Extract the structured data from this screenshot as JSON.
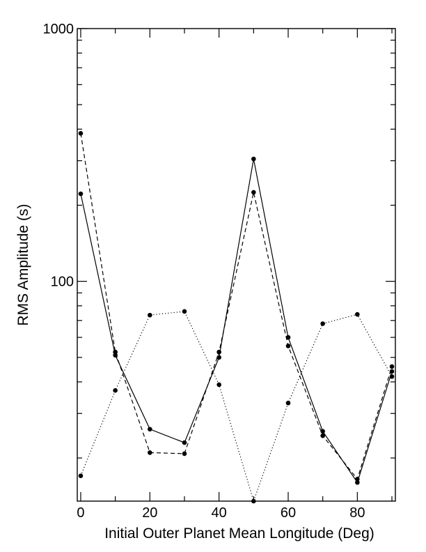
{
  "chart_data": {
    "type": "line",
    "title": "",
    "xlabel": "Initial Outer Planet Mean Longitude (Deg)",
    "ylabel": "RMS Amplitude (s)",
    "xlim": [
      -1,
      91
    ],
    "ylim": [
      13.5,
      1000
    ],
    "yscale": "log",
    "grid": false,
    "x_ticks": [
      0,
      20,
      40,
      60,
      80
    ],
    "x_minor_ticks": [
      10,
      30,
      50,
      70,
      90
    ],
    "y_ticks": [
      100,
      1000
    ],
    "x": [
      0,
      10,
      20,
      30,
      40,
      50,
      60,
      70,
      80,
      90
    ],
    "series": [
      {
        "line_style": "solid",
        "color": "#000000",
        "values": [
          222,
          51,
          26,
          23,
          50,
          305,
          60,
          25.5,
          16,
          44
        ]
      },
      {
        "line_style": "dashed",
        "color": "#000000",
        "values": [
          385,
          52.5,
          21,
          20.8,
          52.5,
          225,
          55.5,
          24.5,
          16.5,
          46
        ]
      },
      {
        "line_style": "dotted",
        "color": "#000000",
        "values": [
          17,
          37,
          73.5,
          76,
          39,
          13.5,
          33,
          68,
          74,
          42
        ]
      }
    ]
  }
}
